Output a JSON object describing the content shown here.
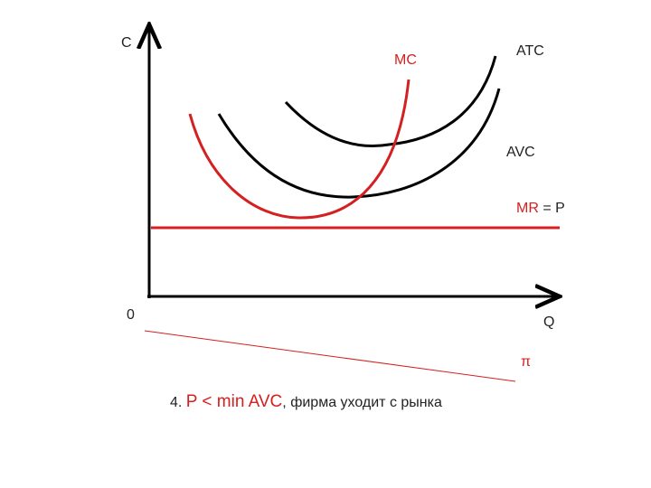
{
  "axes": {
    "y_label": "C",
    "x_label": "Q",
    "origin": "0"
  },
  "curves": {
    "mc": "MC",
    "atc": "ATC",
    "avc": "AVC",
    "mr": "MR",
    "mr_suffix": "= P",
    "profit": "π"
  },
  "caption": {
    "number": "4.",
    "condition": "P < min AVC",
    "text": ", фирма уходит с рынка"
  }
}
